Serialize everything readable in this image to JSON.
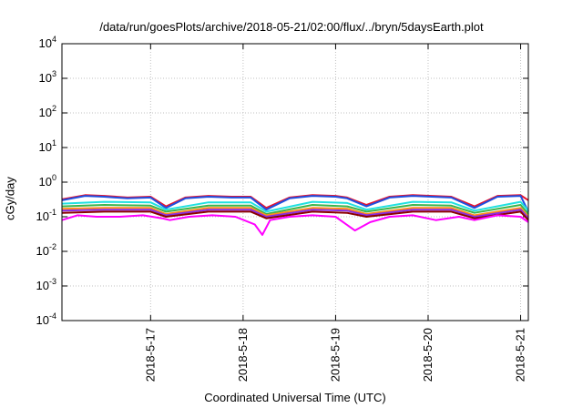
{
  "chart_data": {
    "type": "line",
    "title": "/data/run/goesPlots/archive/2018-05-21/02:00/flux/../bryn/5daysEarth.plot",
    "xlabel": "Coordinated Universal Time (UTC)",
    "ylabel": "cGy/day",
    "yscale": "log",
    "ylim": [
      0.0001,
      10000
    ],
    "ytick_labels": [
      {
        "base": "10",
        "exp": "-4"
      },
      {
        "base": "10",
        "exp": "-3"
      },
      {
        "base": "10",
        "exp": "-2"
      },
      {
        "base": "10",
        "exp": "-1"
      },
      {
        "base": "10",
        "exp": "0"
      },
      {
        "base": "10",
        "exp": "1"
      },
      {
        "base": "10",
        "exp": "2"
      },
      {
        "base": "10",
        "exp": "3"
      },
      {
        "base": "10",
        "exp": "4"
      }
    ],
    "xlim": [
      "2018-05-16 01:00",
      "2018-05-21 02:00"
    ],
    "xtick_labels": [
      "2018-5-17",
      "2018-5-18",
      "2018-5-19",
      "2018-5-20",
      "2018-5-21"
    ],
    "grid": true,
    "legend": false,
    "colors": {
      "magenta": "#ff00ff",
      "red": "#e8112d",
      "blue": "#1f4fe0",
      "cyan": "#1fe0e0",
      "green": "#3cb44b",
      "orange": "#ff8c1a",
      "purple": "#8a2be2",
      "dark_red": "#8b0000",
      "grid": "#c0c0c0"
    },
    "series": [
      {
        "color": "#e8112d",
        "x": [
          "2018-05-16 01:00",
          "2018-05-16 07:00",
          "2018-05-16 12:00",
          "2018-05-16 18:00",
          "2018-05-17 00:00",
          "2018-05-17 04:00",
          "2018-05-17 09:00",
          "2018-05-17 15:00",
          "2018-05-17 21:00",
          "2018-05-18 02:00",
          "2018-05-18 06:00",
          "2018-05-18 12:00",
          "2018-05-18 18:00",
          "2018-05-19 00:00",
          "2018-05-19 03:00",
          "2018-05-19 08:00",
          "2018-05-19 14:00",
          "2018-05-19 20:00",
          "2018-05-20 01:00",
          "2018-05-20 06:00",
          "2018-05-20 12:00",
          "2018-05-20 18:00",
          "2018-05-21 00:00",
          "2018-05-21 02:00"
        ],
        "values": [
          0.32,
          0.42,
          0.4,
          0.36,
          0.38,
          0.2,
          0.36,
          0.4,
          0.38,
          0.38,
          0.18,
          0.36,
          0.42,
          0.4,
          0.36,
          0.22,
          0.38,
          0.42,
          0.4,
          0.38,
          0.2,
          0.4,
          0.42,
          0.3
        ]
      },
      {
        "color": "#1f4fe0",
        "x": [
          "2018-05-16 01:00",
          "2018-05-16 07:00",
          "2018-05-16 12:00",
          "2018-05-16 18:00",
          "2018-05-17 00:00",
          "2018-05-17 04:00",
          "2018-05-17 09:00",
          "2018-05-17 15:00",
          "2018-05-17 21:00",
          "2018-05-18 02:00",
          "2018-05-18 06:00",
          "2018-05-18 12:00",
          "2018-05-18 18:00",
          "2018-05-19 00:00",
          "2018-05-19 03:00",
          "2018-05-19 08:00",
          "2018-05-19 14:00",
          "2018-05-19 20:00",
          "2018-05-20 01:00",
          "2018-05-20 06:00",
          "2018-05-20 12:00",
          "2018-05-20 18:00",
          "2018-05-21 00:00",
          "2018-05-21 02:00"
        ],
        "values": [
          0.3,
          0.4,
          0.38,
          0.34,
          0.36,
          0.18,
          0.34,
          0.38,
          0.36,
          0.36,
          0.16,
          0.34,
          0.4,
          0.38,
          0.34,
          0.2,
          0.36,
          0.4,
          0.38,
          0.36,
          0.18,
          0.38,
          0.4,
          0.14
        ]
      },
      {
        "color": "#1fe0e0",
        "x": [
          "2018-05-16 01:00",
          "2018-05-16 12:00",
          "2018-05-17 00:00",
          "2018-05-17 04:00",
          "2018-05-17 15:00",
          "2018-05-18 02:00",
          "2018-05-18 06:00",
          "2018-05-18 18:00",
          "2018-05-19 03:00",
          "2018-05-19 08:00",
          "2018-05-19 20:00",
          "2018-05-20 06:00",
          "2018-05-20 12:00",
          "2018-05-21 00:00",
          "2018-05-21 02:00"
        ],
        "values": [
          0.24,
          0.27,
          0.26,
          0.16,
          0.26,
          0.26,
          0.14,
          0.27,
          0.25,
          0.16,
          0.27,
          0.26,
          0.15,
          0.27,
          0.15
        ]
      },
      {
        "color": "#3cb44b",
        "x": [
          "2018-05-16 01:00",
          "2018-05-16 12:00",
          "2018-05-17 00:00",
          "2018-05-17 04:00",
          "2018-05-17 15:00",
          "2018-05-18 02:00",
          "2018-05-18 06:00",
          "2018-05-18 18:00",
          "2018-05-19 03:00",
          "2018-05-19 08:00",
          "2018-05-19 20:00",
          "2018-05-20 06:00",
          "2018-05-20 12:00",
          "2018-05-21 00:00",
          "2018-05-21 02:00"
        ],
        "values": [
          0.2,
          0.22,
          0.21,
          0.14,
          0.21,
          0.21,
          0.12,
          0.22,
          0.2,
          0.14,
          0.22,
          0.21,
          0.13,
          0.22,
          0.12
        ]
      },
      {
        "color": "#ff8c1a",
        "x": [
          "2018-05-16 01:00",
          "2018-05-16 12:00",
          "2018-05-17 00:00",
          "2018-05-17 04:00",
          "2018-05-17 15:00",
          "2018-05-18 02:00",
          "2018-05-18 06:00",
          "2018-05-18 18:00",
          "2018-05-19 03:00",
          "2018-05-19 08:00",
          "2018-05-19 20:00",
          "2018-05-20 06:00",
          "2018-05-20 12:00",
          "2018-05-21 00:00",
          "2018-05-21 02:00"
        ],
        "values": [
          0.17,
          0.18,
          0.18,
          0.12,
          0.18,
          0.18,
          0.11,
          0.18,
          0.17,
          0.12,
          0.18,
          0.18,
          0.11,
          0.18,
          0.1
        ]
      },
      {
        "color": "#8a2be2",
        "x": [
          "2018-05-16 01:00",
          "2018-05-16 12:00",
          "2018-05-17 00:00",
          "2018-05-17 04:00",
          "2018-05-17 15:00",
          "2018-05-18 02:00",
          "2018-05-18 06:00",
          "2018-05-18 18:00",
          "2018-05-19 03:00",
          "2018-05-19 08:00",
          "2018-05-19 20:00",
          "2018-05-20 06:00",
          "2018-05-20 12:00",
          "2018-05-21 00:00",
          "2018-05-21 02:00"
        ],
        "values": [
          0.15,
          0.16,
          0.16,
          0.11,
          0.16,
          0.16,
          0.1,
          0.16,
          0.15,
          0.11,
          0.16,
          0.16,
          0.1,
          0.16,
          0.09
        ]
      },
      {
        "color": "#8b0000",
        "x": [
          "2018-05-16 01:00",
          "2018-05-16 12:00",
          "2018-05-17 00:00",
          "2018-05-17 04:00",
          "2018-05-17 15:00",
          "2018-05-18 02:00",
          "2018-05-18 06:00",
          "2018-05-18 18:00",
          "2018-05-19 03:00",
          "2018-05-19 08:00",
          "2018-05-19 20:00",
          "2018-05-20 06:00",
          "2018-05-20 12:00",
          "2018-05-21 00:00",
          "2018-05-21 02:00"
        ],
        "values": [
          0.13,
          0.14,
          0.14,
          0.1,
          0.14,
          0.14,
          0.09,
          0.14,
          0.13,
          0.1,
          0.14,
          0.14,
          0.09,
          0.14,
          0.08
        ]
      },
      {
        "color": "#ff00ff",
        "x": [
          "2018-05-16 01:00",
          "2018-05-16 05:00",
          "2018-05-16 10:00",
          "2018-05-16 16:00",
          "2018-05-16 22:00",
          "2018-05-17 03:00",
          "2018-05-17 05:00",
          "2018-05-17 10:00",
          "2018-05-17 16:00",
          "2018-05-17 22:00",
          "2018-05-18 03:00",
          "2018-05-18 05:00",
          "2018-05-18 07:00",
          "2018-05-18 12:00",
          "2018-05-18 18:00",
          "2018-05-19 00:00",
          "2018-05-19 05:00",
          "2018-05-19 09:00",
          "2018-05-19 14:00",
          "2018-05-19 20:00",
          "2018-05-20 02:00",
          "2018-05-20 08:00",
          "2018-05-20 12:00",
          "2018-05-20 18:00",
          "2018-05-21 00:00",
          "2018-05-21 02:00"
        ],
        "values": [
          0.08,
          0.11,
          0.1,
          0.1,
          0.11,
          0.09,
          0.08,
          0.1,
          0.11,
          0.1,
          0.06,
          0.03,
          0.08,
          0.1,
          0.11,
          0.1,
          0.04,
          0.07,
          0.1,
          0.11,
          0.08,
          0.1,
          0.08,
          0.11,
          0.1,
          0.07
        ]
      }
    ]
  }
}
